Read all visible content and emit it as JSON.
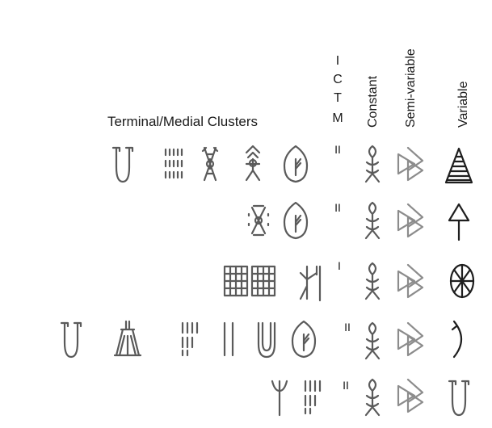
{
  "headers": {
    "terminal_medial": "Terminal/Medial Clusters",
    "ictm_letters": [
      "I",
      "C",
      "T",
      "M"
    ],
    "constant": "Constant",
    "semi_variable": "Semi-variable",
    "variable": "Variable"
  },
  "rows": [
    {
      "ictm": "II",
      "cluster_icons": [
        "jar-sign",
        "stroke-grid-sign",
        "crossed-man-sign",
        "roofed-man-sign",
        "leaf-sign"
      ],
      "constant_icon": "fish-man-sign",
      "semi_variable_icon": "double-triangle-sign",
      "variable_icon": "hatched-triangle-sign"
    },
    {
      "ictm": "II",
      "cluster_icons": [
        "dotted-man-sign",
        "leaf-sign"
      ],
      "constant_icon": "fish-man-sign",
      "semi_variable_icon": "double-triangle-sign",
      "variable_icon": "arrow-sign"
    },
    {
      "ictm": "I",
      "cluster_icons": [
        "grid-sign",
        "grid-sign",
        "staff-man-sign"
      ],
      "constant_icon": "fish-man-sign",
      "semi_variable_icon": "double-triangle-sign",
      "variable_icon": "spoked-wheel-sign"
    },
    {
      "ictm": "II",
      "cluster_icons": [
        "jar-sign",
        "hut-sign",
        "stroke-group-sign",
        "double-bar-sign",
        "nested-jar-sign",
        "leaf-sign"
      ],
      "constant_icon": "fish-man-sign",
      "semi_variable_icon": "double-triangle-sign",
      "variable_icon": "bracket-sign"
    },
    {
      "ictm": "II",
      "cluster_icons": [
        "trident-sign",
        "stroke-group-sign"
      ],
      "constant_icon": "fish-man-sign",
      "semi_variable_icon": "double-triangle-sign",
      "variable_icon": "jar-sign"
    }
  ]
}
